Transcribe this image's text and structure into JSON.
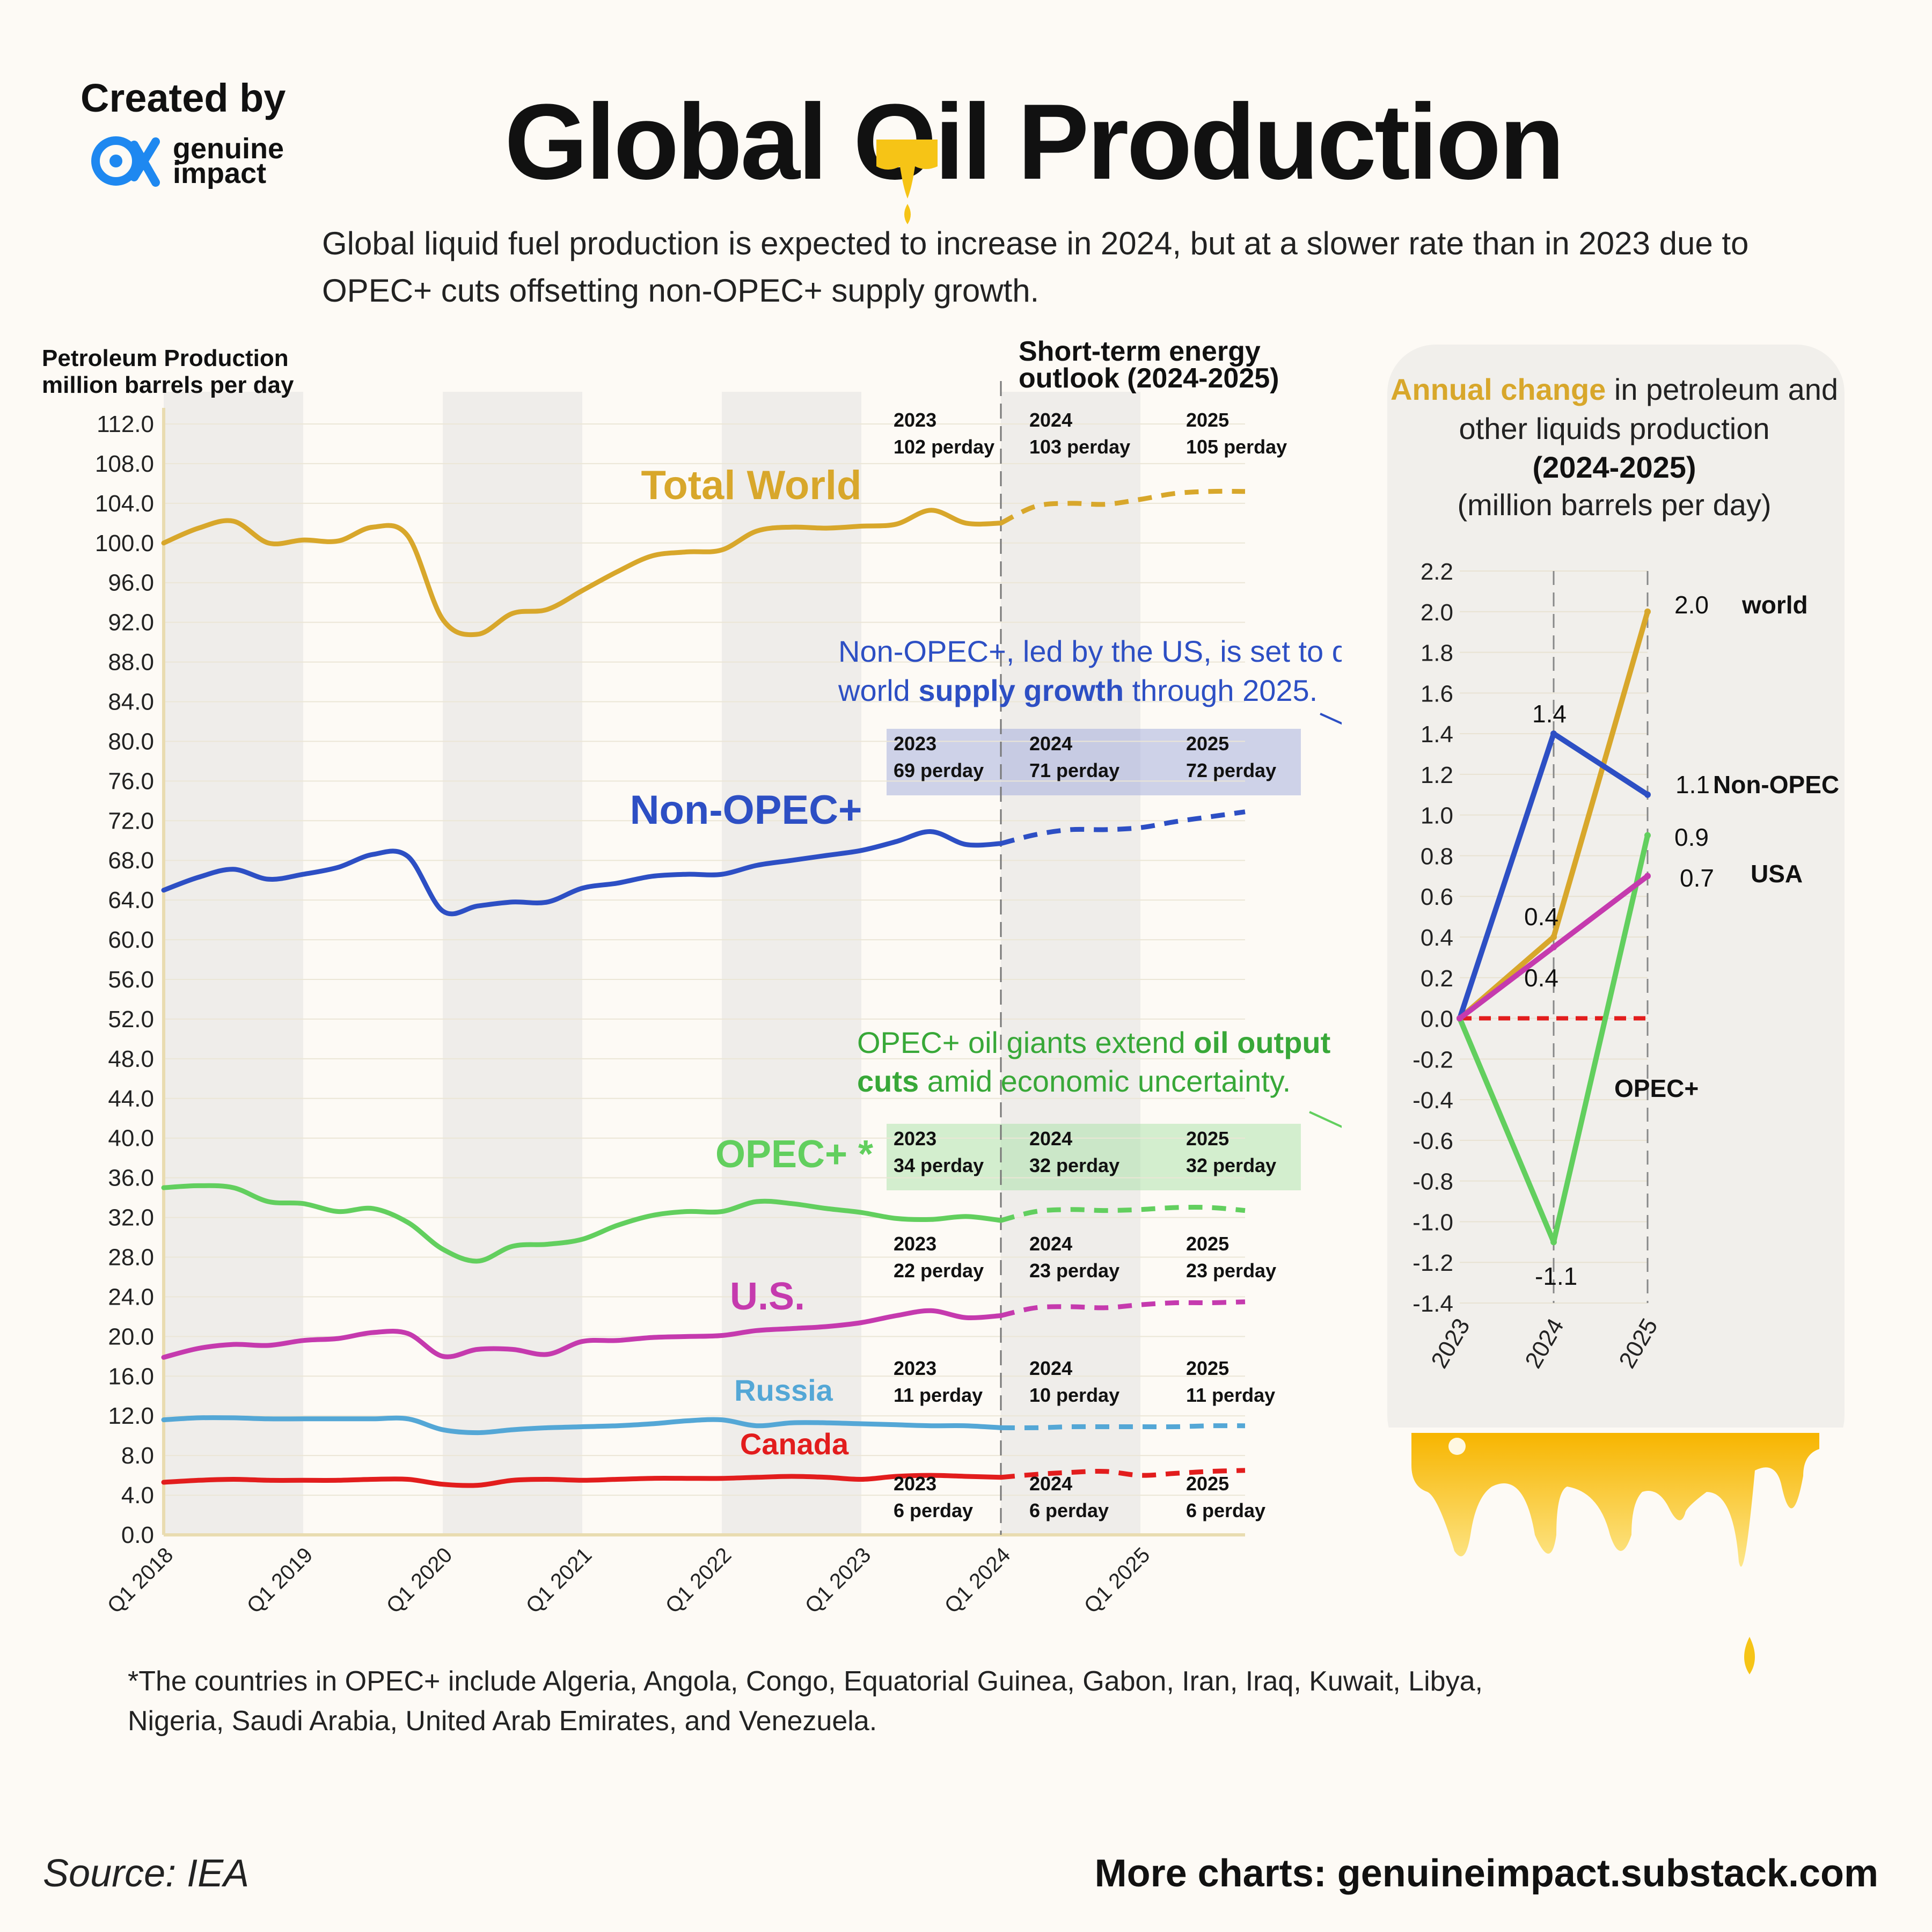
{
  "header": {
    "credit_label": "Created by",
    "brand_line1": "genuine",
    "brand_line2": "impact",
    "title_part1": "Global",
    "title_oil": "Oil",
    "title_part2": "Production",
    "subtitle": "Global liquid fuel production is expected to increase in 2024, but at a slower rate than in 2023 due to OPEC+ cuts offsetting non-OPEC+ supply growth."
  },
  "footer": {
    "note": "*The countries in OPEC+ include Algeria, Angola, Congo, Equatorial Guinea, Gabon, Iran, Iraq, Kuwait, Libya, Nigeria, Saudi Arabia, United Arab Emirates, and Venezuela.",
    "source": "Source: IEA",
    "more_charts": "More charts: genuineimpact.substack.com"
  },
  "colors": {
    "world": "#d8a72b",
    "non_opec": "#2d4fc4",
    "opec": "#62cf5e",
    "us": "#c53aae",
    "russia": "#54a7d6",
    "canada": "#e21d1d",
    "zero_line": "#e21d1d",
    "shade": "#efedea",
    "panel": "#f1efeb"
  },
  "chart_data": [
    {
      "type": "line",
      "ylabel_line1": "Petroleum Production",
      "ylabel_line2": "million barrels per day",
      "ylim": [
        0,
        112
      ],
      "yticks": [
        "0.0",
        "4.0",
        "8.0",
        "12.0",
        "16.0",
        "20.0",
        "24.0",
        "28.0",
        "32.0",
        "36.0",
        "40.0",
        "44.0",
        "48.0",
        "52.0",
        "56.0",
        "60.0",
        "64.0",
        "68.0",
        "72.0",
        "76.0",
        "80.0",
        "84.0",
        "88.0",
        "92.0",
        "96.0",
        "100.0",
        "104.0",
        "108.0",
        "112.0"
      ],
      "xticks": [
        "Q1 2018",
        "Q1 2019",
        "Q1 2020",
        "Q1 2021",
        "Q1 2022",
        "Q1 2023",
        "Q1 2024",
        "Q1 2025"
      ],
      "xlim": [
        2018.0,
        2025.75
      ],
      "forecast_start": 2024.0,
      "forecast_label": "Short-term energy outlook (2024-2025)",
      "shaded_years": [
        2018,
        2020,
        2022,
        2024
      ],
      "series": [
        {
          "key": "world",
          "name": "Total World",
          "x": [
            2018.0,
            2018.25,
            2018.5,
            2018.75,
            2019.0,
            2019.25,
            2019.5,
            2019.75,
            2020.0,
            2020.25,
            2020.5,
            2020.75,
            2021.0,
            2021.25,
            2021.5,
            2021.75,
            2022.0,
            2022.25,
            2022.5,
            2022.75,
            2023.0,
            2023.25,
            2023.5,
            2023.75,
            2024.0,
            2024.25,
            2024.5,
            2024.75,
            2025.0,
            2025.25,
            2025.5,
            2025.75
          ],
          "values": [
            100.0,
            101.5,
            102.2,
            100.0,
            100.3,
            100.2,
            101.6,
            100.7,
            92.3,
            90.8,
            92.9,
            93.3,
            95.2,
            97.1,
            98.7,
            99.1,
            99.3,
            101.2,
            101.6,
            101.5,
            101.7,
            101.9,
            103.3,
            102.0,
            102.0,
            103.7,
            104.0,
            103.9,
            104.4,
            105.0,
            105.2,
            105.2
          ],
          "annotations": [
            {
              "period": "2023",
              "value": "102 perday"
            },
            {
              "period": "2024",
              "value": "103 perday"
            },
            {
              "period": "2025",
              "value": "105 perday"
            }
          ]
        },
        {
          "key": "non_opec",
          "name": "Non-OPEC+",
          "x": [
            2018.0,
            2018.25,
            2018.5,
            2018.75,
            2019.0,
            2019.25,
            2019.5,
            2019.75,
            2020.0,
            2020.25,
            2020.5,
            2020.75,
            2021.0,
            2021.25,
            2021.5,
            2021.75,
            2022.0,
            2022.25,
            2022.5,
            2022.75,
            2023.0,
            2023.25,
            2023.5,
            2023.75,
            2024.0,
            2024.25,
            2024.5,
            2024.75,
            2025.0,
            2025.25,
            2025.5,
            2025.75
          ],
          "values": [
            65.0,
            66.3,
            67.1,
            66.1,
            66.6,
            67.3,
            68.6,
            68.4,
            62.9,
            63.4,
            63.8,
            63.8,
            65.2,
            65.7,
            66.4,
            66.6,
            66.6,
            67.5,
            68.0,
            68.5,
            69.0,
            69.9,
            70.9,
            69.6,
            69.7,
            70.6,
            71.1,
            71.1,
            71.3,
            71.9,
            72.4,
            72.9
          ],
          "annotations": [
            {
              "period": "2023",
              "value": "69 perday"
            },
            {
              "period": "2024",
              "value": "71 perday"
            },
            {
              "period": "2025",
              "value": "72 perday"
            }
          ]
        },
        {
          "key": "opec",
          "name": "OPEC+ *",
          "x": [
            2018.0,
            2018.25,
            2018.5,
            2018.75,
            2019.0,
            2019.25,
            2019.5,
            2019.75,
            2020.0,
            2020.25,
            2020.5,
            2020.75,
            2021.0,
            2021.25,
            2021.5,
            2021.75,
            2022.0,
            2022.25,
            2022.5,
            2022.75,
            2023.0,
            2023.25,
            2023.5,
            2023.75,
            2024.0,
            2024.25,
            2024.5,
            2024.75,
            2025.0,
            2025.25,
            2025.5,
            2025.75
          ],
          "values": [
            35.0,
            35.2,
            35.0,
            33.6,
            33.4,
            32.6,
            32.9,
            31.5,
            28.8,
            27.6,
            29.1,
            29.3,
            29.8,
            31.2,
            32.2,
            32.6,
            32.6,
            33.6,
            33.4,
            32.9,
            32.5,
            31.9,
            31.8,
            32.1,
            31.7,
            32.6,
            32.8,
            32.7,
            32.8,
            33.0,
            33.0,
            32.7
          ],
          "annotations": [
            {
              "period": "2023",
              "value": "34 perday"
            },
            {
              "period": "2024",
              "value": "32 perday"
            },
            {
              "period": "2025",
              "value": "32 perday"
            }
          ]
        },
        {
          "key": "us",
          "name": "U.S.",
          "x": [
            2018.0,
            2018.25,
            2018.5,
            2018.75,
            2019.0,
            2019.25,
            2019.5,
            2019.75,
            2020.0,
            2020.25,
            2020.5,
            2020.75,
            2021.0,
            2021.25,
            2021.5,
            2021.75,
            2022.0,
            2022.25,
            2022.5,
            2022.75,
            2023.0,
            2023.25,
            2023.5,
            2023.75,
            2024.0,
            2024.25,
            2024.5,
            2024.75,
            2025.0,
            2025.25,
            2025.5,
            2025.75
          ],
          "values": [
            17.9,
            18.8,
            19.2,
            19.1,
            19.6,
            19.8,
            20.4,
            20.3,
            18.0,
            18.7,
            18.7,
            18.2,
            19.5,
            19.6,
            19.9,
            20.0,
            20.1,
            20.6,
            20.8,
            21.0,
            21.4,
            22.1,
            22.6,
            21.9,
            22.1,
            22.9,
            23.0,
            22.9,
            23.2,
            23.4,
            23.4,
            23.5
          ],
          "annotations": [
            {
              "period": "2023",
              "value": "22 perday"
            },
            {
              "period": "2024",
              "value": "23 perday"
            },
            {
              "period": "2025",
              "value": "23 perday"
            }
          ]
        },
        {
          "key": "russia",
          "name": "Russia",
          "x": [
            2018.0,
            2018.25,
            2018.5,
            2018.75,
            2019.0,
            2019.25,
            2019.5,
            2019.75,
            2020.0,
            2020.25,
            2020.5,
            2020.75,
            2021.0,
            2021.25,
            2021.5,
            2021.75,
            2022.0,
            2022.25,
            2022.5,
            2022.75,
            2023.0,
            2023.25,
            2023.5,
            2023.75,
            2024.0,
            2024.25,
            2024.5,
            2024.75,
            2025.0,
            2025.25,
            2025.5,
            2025.75
          ],
          "values": [
            11.6,
            11.8,
            11.8,
            11.7,
            11.7,
            11.7,
            11.7,
            11.7,
            10.6,
            10.3,
            10.6,
            10.8,
            10.9,
            11.0,
            11.2,
            11.5,
            11.6,
            11.0,
            11.3,
            11.3,
            11.2,
            11.1,
            11.0,
            11.0,
            10.8,
            10.8,
            10.9,
            10.9,
            10.9,
            10.9,
            11.0,
            11.0
          ],
          "annotations": [
            {
              "period": "2023",
              "value": "11 perday"
            },
            {
              "period": "2024",
              "value": "10 perday"
            },
            {
              "period": "2025",
              "value": "11 perday"
            }
          ]
        },
        {
          "key": "canada",
          "name": "Canada",
          "x": [
            2018.0,
            2018.25,
            2018.5,
            2018.75,
            2019.0,
            2019.25,
            2019.5,
            2019.75,
            2020.0,
            2020.25,
            2020.5,
            2020.75,
            2021.0,
            2021.25,
            2021.5,
            2021.75,
            2022.0,
            2022.25,
            2022.5,
            2022.75,
            2023.0,
            2023.25,
            2023.5,
            2023.75,
            2024.0,
            2024.25,
            2024.5,
            2024.75,
            2025.0,
            2025.25,
            2025.5,
            2025.75
          ],
          "values": [
            5.3,
            5.5,
            5.6,
            5.5,
            5.5,
            5.5,
            5.6,
            5.6,
            5.1,
            5.0,
            5.5,
            5.6,
            5.5,
            5.6,
            5.7,
            5.7,
            5.7,
            5.8,
            5.9,
            5.8,
            5.6,
            5.9,
            6.0,
            5.9,
            5.8,
            6.1,
            6.3,
            6.4,
            6.0,
            6.2,
            6.4,
            6.5
          ],
          "annotations": [
            {
              "period": "2023",
              "value": "6 perday"
            },
            {
              "period": "2024",
              "value": "6 perday"
            },
            {
              "period": "2025",
              "value": "6 perday"
            }
          ]
        }
      ],
      "callouts": {
        "non_opec_pre": "Non-OPEC+, led by the US, is set to drive world ",
        "non_opec_bold": "supply growth",
        "non_opec_post": " through 2025.",
        "non_opec_line1": "Non-OPEC+, led by the US, is set to drive",
        "opec_pre": "OPEC+ oil giants extend ",
        "opec_bold1": "oil output",
        "opec_bold2": "cuts",
        "opec_post": " amid economic uncertainty."
      }
    },
    {
      "type": "line",
      "title_highlight": "Annual change",
      "title_rest": " in petroleum and",
      "title_line2": "other liquids production",
      "title_line3": "(2024-2025)",
      "title_line4": "(million barrels per day)",
      "categories": [
        "2023",
        "2024",
        "2025"
      ],
      "ylim": [
        -1.4,
        2.2
      ],
      "yticks": [
        "2.2",
        "2.0",
        "1.8",
        "1.6",
        "1.4",
        "1.2",
        "1.0",
        "0.8",
        "0.6",
        "0.4",
        "0.2",
        "0.0",
        "-0.2",
        "-0.4",
        "-0.6",
        "-0.8",
        "-1.0",
        "-1.2",
        "-1.4"
      ],
      "series": [
        {
          "key": "world",
          "name": "world",
          "values": [
            0,
            0.4,
            2.0
          ]
        },
        {
          "key": "non_opec",
          "name": "Non-OPEC",
          "values": [
            0,
            1.4,
            1.1
          ]
        },
        {
          "key": "opec",
          "name": "OPEC+",
          "values": [
            0,
            -1.1,
            0.9
          ]
        },
        {
          "key": "us",
          "name": "USA",
          "values": [
            0,
            0.35,
            0.7
          ]
        }
      ],
      "value_labels": {
        "world_2024": "0.4",
        "world_2025": "2.0",
        "non_opec_2024": "1.4",
        "non_opec_2025": "1.1",
        "opec_2024": "-1.1",
        "opec_2025": "0.9",
        "us_2024": "0.4",
        "us_2025": "0.7"
      }
    }
  ]
}
